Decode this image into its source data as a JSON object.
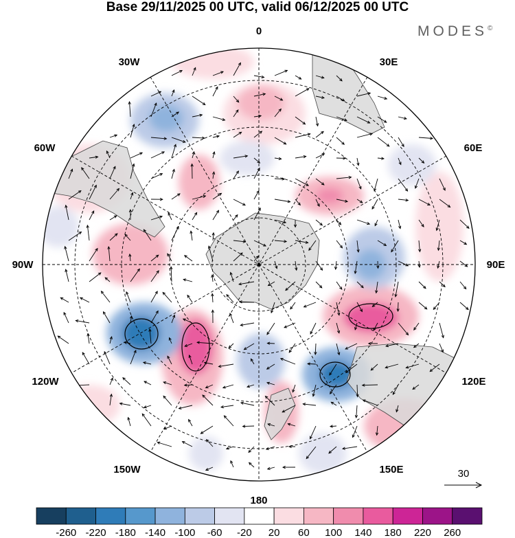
{
  "title": "Base 29/11/2025 00 UTC, valid 06/12/2025 00 UTC",
  "brand": "MODES",
  "brand_mark": "©",
  "longitude_labels": {
    "top": "0",
    "bottom": "180",
    "left": "90W",
    "right": "90E",
    "upper_left_30": "30W",
    "upper_left_60": "60W",
    "upper_right_30": "30E",
    "upper_right_60": "60E",
    "lower_left_120": "120W",
    "lower_left_150": "150W",
    "lower_right_120": "120E",
    "lower_right_150": "150E"
  },
  "vector_reference": {
    "value": "30"
  },
  "colorbar": {
    "ticks": [
      "-260",
      "-220",
      "-180",
      "-140",
      "-100",
      "-60",
      "-20",
      "20",
      "60",
      "100",
      "140",
      "180",
      "220",
      "260"
    ],
    "colors": [
      "#173f5f",
      "#1f5f8e",
      "#2f7cb8",
      "#5698cc",
      "#8fb3dd",
      "#bccbe7",
      "#e2e4f2",
      "#ffffff",
      "#fbdde2",
      "#f6b7c4",
      "#f08cad",
      "#e95b9e",
      "#cd2596",
      "#9c1488",
      "#5a1070"
    ]
  },
  "colors": {
    "land": "#d9d9d9",
    "grid": "#000000"
  }
}
